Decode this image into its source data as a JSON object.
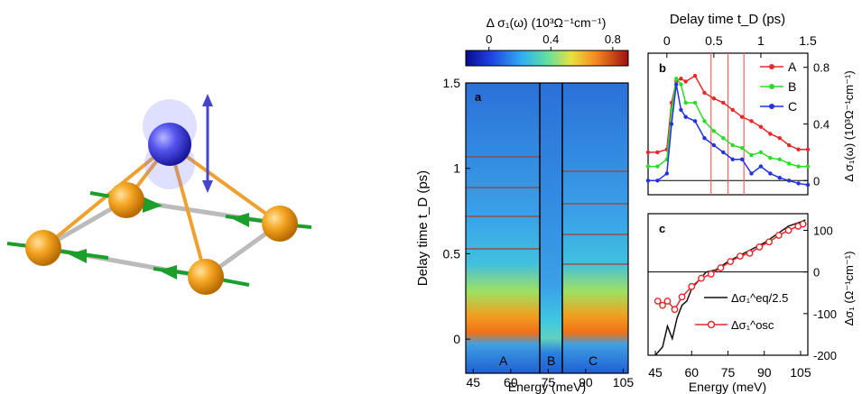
{
  "colorbar": {
    "label": "Δ σ₁(ω) (10³Ω⁻¹cm⁻¹)",
    "ticks": [
      0,
      0.4,
      0.8
    ],
    "tick_labels": [
      "0",
      "0.4",
      "0.8"
    ],
    "range": [
      -0.15,
      0.9
    ]
  },
  "panel_a": {
    "label": "a",
    "ylabel": "Delay time t_D (ps)",
    "xlabel": "Energy (meV)",
    "y_ticks": [
      0,
      0.5,
      1,
      1.5
    ],
    "y_tick_labels": [
      "0",
      "0.5",
      "1",
      "1.5"
    ],
    "x_ticks": [
      45,
      60,
      75,
      90,
      105
    ],
    "x_tick_labels": [
      "45",
      "60",
      "75",
      "90",
      "105"
    ],
    "region_labels": [
      "A",
      "B",
      "C"
    ],
    "colors": {
      "background": "#1e5fd6",
      "band": "#f0a020",
      "line": "#b03020"
    }
  },
  "panel_b": {
    "label": "b",
    "top_axis_label": "Delay time t_D (ps)",
    "top_ticks": [
      0,
      0.5,
      1,
      1.5
    ],
    "top_tick_labels": [
      "0",
      "0.5",
      "1",
      "1.5"
    ],
    "right_ylabel": "Δ σ₁(ω) (10³Ω⁻¹cm⁻¹)",
    "right_ticks": [
      0,
      0.4,
      0.8
    ],
    "right_tick_labels": [
      "0",
      "0.4",
      "0.8"
    ],
    "legend": [
      "A",
      "B",
      "C"
    ]
  },
  "panel_c": {
    "label": "c",
    "xlabel": "Energy (meV)",
    "x_ticks": [
      45,
      60,
      75,
      90,
      105
    ],
    "x_tick_labels": [
      "45",
      "60",
      "75",
      "90",
      "105"
    ],
    "right_ylabel": "Δσ₁ (Ω⁻¹cm⁻¹)",
    "right_ticks": [
      100,
      0,
      -100,
      -200
    ],
    "right_tick_labels": [
      "100",
      "0",
      "-100",
      "-200"
    ],
    "legend_eq": "Δσ₁^eq/2.5",
    "legend_osc": "Δσ₁^osc"
  },
  "chart_data": [
    {
      "type": "line",
      "panel": "b",
      "xlim": [
        -0.2,
        1.5
      ],
      "ylim": [
        -0.1,
        0.9
      ],
      "x": [
        -0.2,
        -0.1,
        0,
        0.05,
        0.1,
        0.15,
        0.2,
        0.3,
        0.4,
        0.5,
        0.6,
        0.7,
        0.8,
        0.9,
        1.0,
        1.1,
        1.2,
        1.3,
        1.4,
        1.5
      ],
      "series": [
        {
          "name": "A",
          "color": "#e8282a",
          "values": [
            0.2,
            0.2,
            0.22,
            0.55,
            0.7,
            0.72,
            0.7,
            0.74,
            0.62,
            0.58,
            0.55,
            0.5,
            0.45,
            0.42,
            0.38,
            0.33,
            0.3,
            0.25,
            0.22,
            0.22
          ]
        },
        {
          "name": "B",
          "color": "#2adb2a",
          "values": [
            0.1,
            0.1,
            0.15,
            0.5,
            0.72,
            0.68,
            0.55,
            0.55,
            0.42,
            0.35,
            0.3,
            0.25,
            0.23,
            0.18,
            0.2,
            0.16,
            0.15,
            0.12,
            0.1,
            0.1
          ]
        },
        {
          "name": "C",
          "color": "#2232e0",
          "values": [
            0.0,
            0.0,
            0.05,
            0.4,
            0.68,
            0.5,
            0.45,
            0.42,
            0.3,
            0.25,
            0.2,
            0.15,
            0.15,
            0.05,
            0.1,
            0.05,
            0.02,
            0.0,
            -0.02,
            -0.03
          ]
        }
      ],
      "vlines": [
        0.47,
        0.65,
        0.82
      ]
    },
    {
      "type": "line",
      "panel": "c",
      "xlim": [
        42,
        108
      ],
      "ylim": [
        -200,
        140
      ],
      "series": [
        {
          "name": "Δσ₁^eq/2.5",
          "color": "#111111",
          "x": [
            45,
            48,
            50,
            52,
            54,
            56,
            58,
            60,
            63,
            66,
            70,
            75,
            80,
            85,
            90,
            95,
            100,
            105,
            107
          ],
          "values": [
            -200,
            -180,
            -130,
            -160,
            -110,
            -80,
            -70,
            -40,
            -20,
            0,
            5,
            25,
            40,
            55,
            70,
            90,
            110,
            120,
            125
          ]
        },
        {
          "name": "Δσ₁^osc",
          "color": "#e8282a",
          "x": [
            46,
            48,
            50,
            53,
            56,
            60,
            64,
            68,
            72,
            76,
            80,
            84,
            88,
            92,
            96,
            100,
            104,
            106
          ],
          "values": [
            -70,
            -80,
            -70,
            -90,
            -60,
            -35,
            -15,
            -5,
            10,
            25,
            38,
            45,
            60,
            72,
            88,
            100,
            110,
            115
          ]
        }
      ]
    }
  ]
}
